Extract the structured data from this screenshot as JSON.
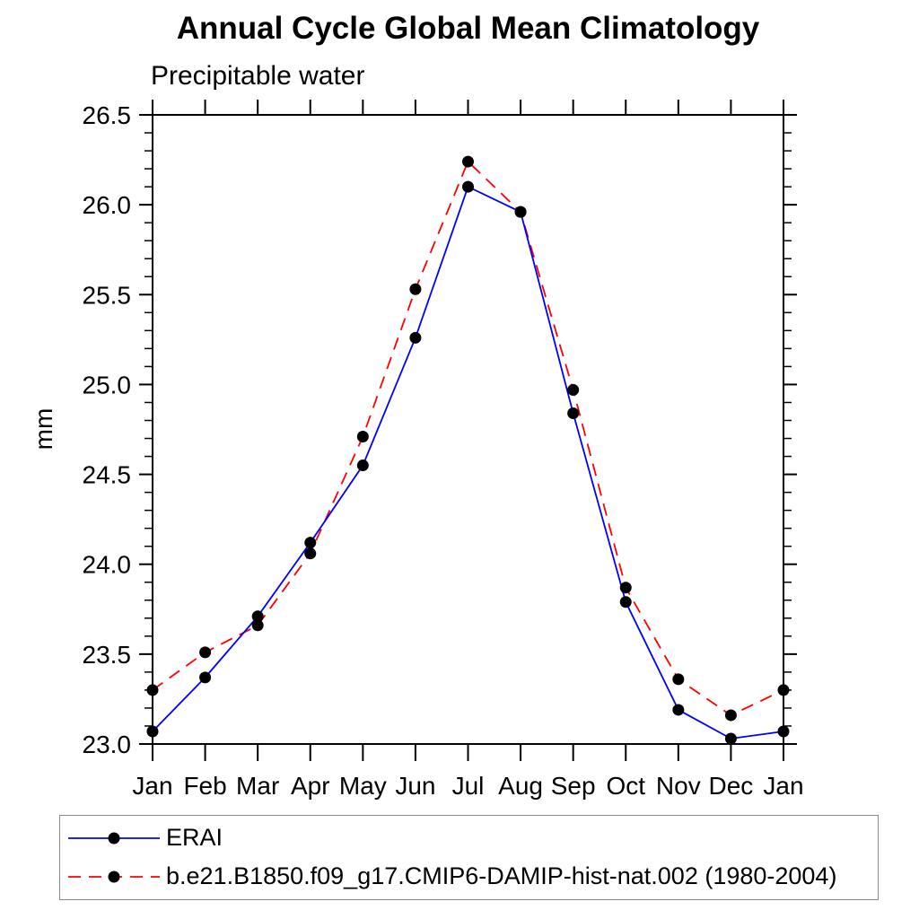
{
  "chart_data": {
    "type": "line",
    "title": "Annual Cycle Global Mean Climatology",
    "subtitle": "Precipitable water",
    "ylabel": "mm",
    "xlabel": "",
    "categories": [
      "Jan",
      "Feb",
      "Mar",
      "Apr",
      "May",
      "Jun",
      "Jul",
      "Aug",
      "Sep",
      "Oct",
      "Nov",
      "Dec",
      "Jan"
    ],
    "ylim": [
      23.0,
      26.5
    ],
    "y_major_ticks": [
      23.0,
      23.5,
      24.0,
      24.5,
      25.0,
      25.5,
      26.0,
      26.5
    ],
    "y_minor_tick_step": 0.1,
    "grid": false,
    "legend_position": "bottom",
    "axis_color": "#000000",
    "series": [
      {
        "name": "ERAI",
        "color": "#0000ff",
        "line_style": "solid",
        "marker": "filled-circle",
        "marker_color": "#000000",
        "values": [
          23.07,
          23.37,
          23.71,
          24.12,
          24.55,
          25.26,
          26.1,
          25.96,
          24.84,
          23.79,
          23.19,
          23.03,
          23.07
        ]
      },
      {
        "name": "b.e21.B1850.f09_g17.CMIP6-DAMIP-hist-nat.002 (1980-2004)",
        "color": "#ff0000",
        "line_style": "dashed",
        "marker": "filled-circle",
        "marker_color": "#000000",
        "values": [
          23.3,
          23.51,
          23.66,
          24.06,
          24.71,
          25.53,
          26.24,
          25.96,
          24.97,
          23.87,
          23.36,
          23.16,
          23.3
        ]
      }
    ]
  }
}
